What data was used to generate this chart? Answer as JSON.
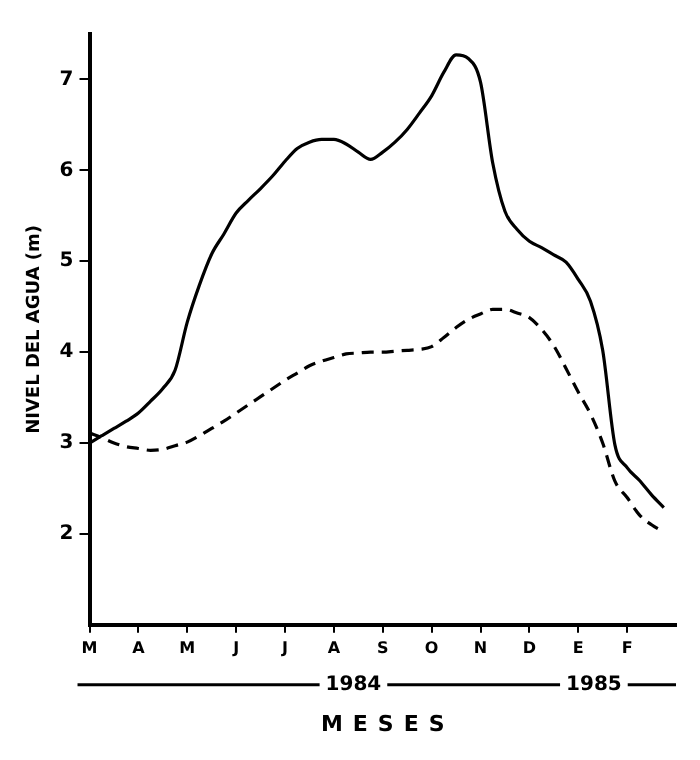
{
  "chart_data": {
    "type": "line",
    "xlabel": "MESES",
    "ylabel": "NIVEL DEL AGUA (m)",
    "annotations": [
      "1984",
      "1985"
    ],
    "categories": [
      "M",
      null,
      null,
      null,
      "A",
      null,
      null,
      null,
      "M",
      null,
      null,
      null,
      "J",
      null,
      null,
      null,
      "J",
      null,
      null,
      null,
      "A",
      null,
      null,
      null,
      "S",
      null,
      null,
      null,
      "O",
      null,
      null,
      null,
      "N",
      null,
      null,
      null,
      "D",
      null,
      null,
      null,
      "E",
      null,
      null,
      null,
      "F",
      null,
      null,
      null,
      null
    ],
    "ylim": [
      1,
      7.5
    ],
    "yticks": [
      2,
      3,
      4,
      5,
      6,
      7
    ],
    "grid": false,
    "legend": false,
    "marker": "none",
    "series": [
      {
        "color": "#000000",
        "line_style": "solid",
        "values": [
          3.0,
          3.08,
          3.16,
          3.24,
          3.33,
          3.46,
          3.6,
          3.8,
          4.33,
          4.74,
          5.08,
          5.3,
          5.53,
          5.67,
          5.8,
          5.94,
          6.1,
          6.24,
          6.31,
          6.34,
          6.34,
          6.29,
          6.2,
          6.12,
          6.2,
          6.31,
          6.45,
          6.63,
          6.82,
          7.08,
          7.27,
          7.23,
          6.97,
          6.08,
          5.55,
          5.35,
          5.22,
          5.15,
          5.07,
          4.99,
          4.8,
          4.56,
          4.02,
          2.98,
          2.73,
          2.59,
          2.43,
          2.29,
          null
        ]
      },
      {
        "color": "#000000",
        "line_style": "dashed",
        "values": [
          3.11,
          3.06,
          3.0,
          2.96,
          2.94,
          2.92,
          2.93,
          2.97,
          3.01,
          3.08,
          3.16,
          3.24,
          3.33,
          3.42,
          3.51,
          3.6,
          3.69,
          3.77,
          3.85,
          3.9,
          3.94,
          3.98,
          3.99,
          4.0,
          4.0,
          4.01,
          4.02,
          4.03,
          4.06,
          4.16,
          4.27,
          4.36,
          4.42,
          4.47,
          4.47,
          4.43,
          4.38,
          4.25,
          4.07,
          3.82,
          3.56,
          3.32,
          3.0,
          2.58,
          2.4,
          2.21,
          2.1,
          2.02,
          null
        ]
      }
    ]
  }
}
